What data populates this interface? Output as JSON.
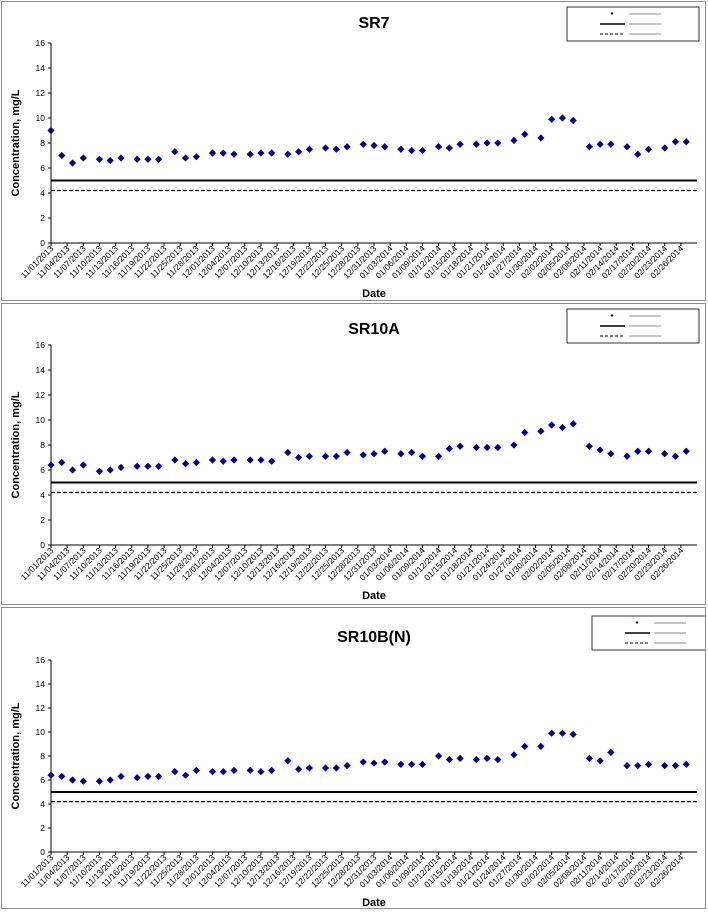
{
  "chart_data": [
    {
      "type": "scatter",
      "title": "SR7",
      "xlabel": "Date",
      "ylabel": "Concentration, mg/L",
      "ylim": [
        0,
        16
      ],
      "yticks": [
        "0",
        "2",
        "4",
        "6",
        "8",
        "10",
        "12",
        "14",
        "16"
      ],
      "grid": false,
      "legend_position": "top-right",
      "xticks": [
        "11/01/2013",
        "11/04/2013",
        "11/07/2013",
        "11/10/2013",
        "11/13/2013",
        "11/16/2013",
        "11/19/2013",
        "11/22/2013",
        "11/25/2013",
        "11/28/2013",
        "12/01/2013",
        "12/04/2013",
        "12/07/2013",
        "12/10/2013",
        "12/13/2013",
        "12/16/2013",
        "12/19/2013",
        "12/22/2013",
        "12/25/2013",
        "12/28/2013",
        "12/31/2013",
        "01/03/2014",
        "01/06/2014",
        "01/09/2014",
        "01/12/2014",
        "01/15/2014",
        "01/18/2014",
        "01/21/2014",
        "01/24/2014",
        "01/27/2014",
        "01/30/2014",
        "02/02/2014",
        "02/05/2014",
        "02/08/2014",
        "02/11/2014",
        "02/14/2014",
        "02/17/2014",
        "02/20/2014",
        "02/23/2014",
        "02/26/2014"
      ],
      "series": [
        {
          "color": "#00008b",
          "marker": "diamond",
          "x": [
            "11/01/2013",
            "11/03/2013",
            "11/05/2013",
            "11/07/2013",
            "11/10/2013",
            "11/12/2013",
            "11/14/2013",
            "11/17/2013",
            "11/19/2013",
            "11/21/2013",
            "11/24/2013",
            "11/26/2013",
            "11/28/2013",
            "12/01/2013",
            "12/03/2013",
            "12/05/2013",
            "12/08/2013",
            "12/10/2013",
            "12/12/2013",
            "12/15/2013",
            "12/17/2013",
            "12/19/2013",
            "12/22/2013",
            "12/24/2013",
            "12/26/2013",
            "12/29/2013",
            "12/31/2013",
            "01/02/2014",
            "01/05/2014",
            "01/07/2014",
            "01/09/2014",
            "01/12/2014",
            "01/14/2014",
            "01/16/2014",
            "01/19/2014",
            "01/21/2014",
            "01/23/2014",
            "01/26/2014",
            "01/28/2014",
            "01/31/2014",
            "02/02/2014",
            "02/04/2014",
            "02/06/2014",
            "02/09/2014",
            "02/11/2014",
            "02/13/2014",
            "02/16/2014",
            "02/18/2014",
            "02/20/2014",
            "02/23/2014",
            "02/25/2014",
            "02/27/2014"
          ],
          "y": [
            9.0,
            7.0,
            6.4,
            6.8,
            6.7,
            6.6,
            6.8,
            6.7,
            6.7,
            6.7,
            7.3,
            6.8,
            6.9,
            7.2,
            7.2,
            7.1,
            7.1,
            7.2,
            7.2,
            7.1,
            7.3,
            7.5,
            7.6,
            7.5,
            7.7,
            7.9,
            7.8,
            7.7,
            7.5,
            7.4,
            7.4,
            7.7,
            7.6,
            7.9,
            7.9,
            8.0,
            8.0,
            8.2,
            8.7,
            8.4,
            9.9,
            10.0,
            9.8,
            7.7,
            7.9,
            7.9,
            7.7,
            7.1,
            7.5,
            7.6,
            8.1,
            8.1
          ]
        },
        {
          "color": "#000000",
          "line": "solid",
          "y": 5.0
        },
        {
          "color": "#000000",
          "line": "dashed",
          "y": 4.2
        }
      ]
    },
    {
      "type": "scatter",
      "title": "SR10A",
      "xlabel": "Date",
      "ylabel": "Concentration, mg/L",
      "ylim": [
        0,
        16
      ],
      "yticks": [
        "0",
        "2",
        "4",
        "6",
        "8",
        "10",
        "12",
        "14",
        "16"
      ],
      "grid": false,
      "legend_position": "top-right",
      "xticks": [
        "11/01/2013",
        "11/04/2013",
        "11/07/2013",
        "11/10/2013",
        "11/13/2013",
        "11/16/2013",
        "11/19/2013",
        "11/22/2013",
        "11/25/2013",
        "11/28/2013",
        "12/01/2013",
        "12/04/2013",
        "12/07/2013",
        "12/10/2013",
        "12/13/2013",
        "12/16/2013",
        "12/19/2013",
        "12/22/2013",
        "12/25/2013",
        "12/28/2013",
        "12/31/2013",
        "01/03/2014",
        "01/06/2014",
        "01/09/2014",
        "01/12/2014",
        "01/15/2014",
        "01/18/2014",
        "01/21/2014",
        "01/24/2014",
        "01/27/2014",
        "01/30/2014",
        "02/02/2014",
        "02/05/2014",
        "02/08/2014",
        "02/11/2014",
        "02/14/2014",
        "02/17/2014",
        "02/20/2014",
        "02/23/2014",
        "02/26/2014"
      ],
      "series": [
        {
          "color": "#00008b",
          "marker": "diamond",
          "x": [
            "11/01/2013",
            "11/03/2013",
            "11/05/2013",
            "11/07/2013",
            "11/10/2013",
            "11/12/2013",
            "11/14/2013",
            "11/17/2013",
            "11/19/2013",
            "11/21/2013",
            "11/24/2013",
            "11/26/2013",
            "11/28/2013",
            "12/01/2013",
            "12/03/2013",
            "12/05/2013",
            "12/08/2013",
            "12/10/2013",
            "12/12/2013",
            "12/15/2013",
            "12/17/2013",
            "12/19/2013",
            "12/22/2013",
            "12/24/2013",
            "12/26/2013",
            "12/29/2013",
            "12/31/2013",
            "01/02/2014",
            "01/05/2014",
            "01/07/2014",
            "01/09/2014",
            "01/12/2014",
            "01/14/2014",
            "01/16/2014",
            "01/19/2014",
            "01/21/2014",
            "01/23/2014",
            "01/26/2014",
            "01/28/2014",
            "01/31/2014",
            "02/02/2014",
            "02/04/2014",
            "02/06/2014",
            "02/09/2014",
            "02/11/2014",
            "02/13/2014",
            "02/16/2014",
            "02/18/2014",
            "02/20/2014",
            "02/23/2014",
            "02/25/2014",
            "02/27/2014"
          ],
          "y": [
            6.4,
            6.6,
            6.0,
            6.4,
            5.9,
            6.0,
            6.2,
            6.3,
            6.3,
            6.3,
            6.8,
            6.5,
            6.6,
            6.8,
            6.7,
            6.8,
            6.8,
            6.8,
            6.7,
            7.4,
            7.0,
            7.1,
            7.1,
            7.1,
            7.4,
            7.2,
            7.3,
            7.5,
            7.3,
            7.4,
            7.1,
            7.1,
            7.7,
            7.9,
            7.8,
            7.8,
            7.8,
            8.0,
            9.0,
            9.1,
            9.6,
            9.4,
            9.7,
            7.9,
            7.6,
            7.3,
            7.1,
            7.5,
            7.5,
            7.3,
            7.1,
            7.5
          ]
        },
        {
          "color": "#000000",
          "line": "solid",
          "y": 5.0
        },
        {
          "color": "#000000",
          "line": "dashed",
          "y": 4.2
        }
      ]
    },
    {
      "type": "scatter",
      "title": "SR10B(N)",
      "xlabel": "Date",
      "ylabel": "Concentration, mg/L",
      "ylim": [
        0,
        16
      ],
      "yticks": [
        "0",
        "2",
        "4",
        "6",
        "8",
        "10",
        "12",
        "14",
        "16"
      ],
      "grid": false,
      "legend_position": "top-right",
      "xticks": [
        "11/01/2013",
        "11/04/2013",
        "11/07/2013",
        "11/10/2013",
        "11/13/2013",
        "11/16/2013",
        "11/19/2013",
        "11/22/2013",
        "11/25/2013",
        "11/28/2013",
        "12/01/2013",
        "12/04/2013",
        "12/07/2013",
        "12/10/2013",
        "12/13/2013",
        "12/16/2013",
        "12/19/2013",
        "12/22/2013",
        "12/25/2013",
        "12/28/2013",
        "12/31/2013",
        "01/03/2014",
        "01/06/2014",
        "01/09/2014",
        "01/12/2014",
        "01/15/2014",
        "01/18/2014",
        "01/21/2014",
        "01/24/2014",
        "01/27/2014",
        "01/30/2014",
        "02/02/2014",
        "02/05/2014",
        "02/08/2014",
        "02/11/2014",
        "02/14/2014",
        "02/17/2014",
        "02/20/2014",
        "02/23/2014",
        "02/26/2014"
      ],
      "series": [
        {
          "color": "#00008b",
          "marker": "diamond",
          "x": [
            "11/01/2013",
            "11/03/2013",
            "11/05/2013",
            "11/07/2013",
            "11/10/2013",
            "11/12/2013",
            "11/14/2013",
            "11/17/2013",
            "11/19/2013",
            "11/21/2013",
            "11/24/2013",
            "11/26/2013",
            "11/28/2013",
            "12/01/2013",
            "12/03/2013",
            "12/05/2013",
            "12/08/2013",
            "12/10/2013",
            "12/12/2013",
            "12/15/2013",
            "12/17/2013",
            "12/19/2013",
            "12/22/2013",
            "12/24/2013",
            "12/26/2013",
            "12/29/2013",
            "12/31/2013",
            "01/02/2014",
            "01/05/2014",
            "01/07/2014",
            "01/09/2014",
            "01/12/2014",
            "01/14/2014",
            "01/16/2014",
            "01/19/2014",
            "01/21/2014",
            "01/23/2014",
            "01/26/2014",
            "01/28/2014",
            "01/31/2014",
            "02/02/2014",
            "02/04/2014",
            "02/06/2014",
            "02/09/2014",
            "02/11/2014",
            "02/13/2014",
            "02/16/2014",
            "02/18/2014",
            "02/20/2014",
            "02/23/2014",
            "02/25/2014",
            "02/27/2014"
          ],
          "y": [
            6.4,
            6.3,
            6.0,
            5.9,
            5.9,
            6.0,
            6.3,
            6.2,
            6.3,
            6.3,
            6.7,
            6.4,
            6.8,
            6.7,
            6.7,
            6.8,
            6.8,
            6.7,
            6.8,
            7.6,
            6.9,
            7.0,
            7.0,
            7.0,
            7.2,
            7.5,
            7.4,
            7.5,
            7.3,
            7.3,
            7.3,
            8.0,
            7.7,
            7.8,
            7.7,
            7.8,
            7.7,
            8.1,
            8.8,
            8.8,
            9.9,
            9.9,
            9.8,
            7.8,
            7.6,
            8.3,
            7.2,
            7.2,
            7.3,
            7.2,
            7.2,
            7.3
          ]
        },
        {
          "color": "#000000",
          "line": "solid",
          "y": 5.0
        },
        {
          "color": "#000000",
          "line": "dashed",
          "y": 4.2
        }
      ]
    }
  ]
}
